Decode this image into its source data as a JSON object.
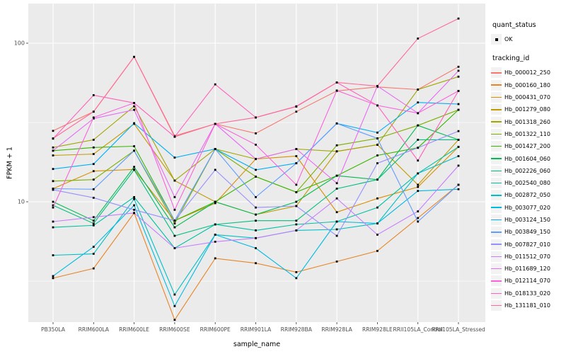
{
  "figure": {
    "y_axis": {
      "title": "FPKM + 1",
      "tick_labels": [
        "100",
        "10"
      ]
    },
    "x_axis": {
      "title": "sample_name"
    },
    "legend": {
      "quant_status": {
        "title": "quant_status",
        "items": [
          {
            "label": "OK",
            "marker": "black-point"
          }
        ]
      },
      "tracking_id": {
        "title": "tracking_id"
      }
    },
    "colors": {
      "panel_bg": "#EBEBEB",
      "grid": "#FFFFFF",
      "tick_text": "#4D4D4D",
      "point": "#000000",
      "legend_key_bg": "#F2F2F2"
    }
  },
  "chart_data": {
    "type": "line",
    "scale": "log10",
    "title": "",
    "xlabel": "sample_name",
    "ylabel": "FPKM + 1",
    "ylim": [
      1.7,
      190
    ],
    "yticks": [
      100,
      10
    ],
    "y_minor_gridlines": [
      31.6,
      3.16
    ],
    "grid": true,
    "legend_position": "right",
    "marker": "black-square-point",
    "categories": [
      "PB350LA",
      "RRIM600LA",
      "RRIM600LE",
      "RRIM600SE",
      "RRIM600PE",
      "RRIM901LA",
      "RRIM928BA",
      "RRIM928LA",
      "RRIM928LE",
      "RRII105LA_Control",
      "RRII105LA_Stressed"
    ],
    "series": [
      {
        "name": "Hb_000012_250",
        "color": "#F8766D",
        "values": [
          28,
          37,
          82,
          26,
          31,
          27,
          37,
          50,
          53,
          51,
          71
        ]
      },
      {
        "name": "Hb_000160_180",
        "color": "#E88526",
        "values": [
          3.3,
          3.8,
          8.5,
          1.8,
          4.4,
          4.1,
          3.6,
          4.2,
          4.9,
          7.9,
          12.8
        ]
      },
      {
        "name": "Hb_000431_070",
        "color": "#D89000",
        "values": [
          12.1,
          15.6,
          16,
          7.6,
          9.8,
          18.6,
          19.4,
          8.6,
          10.5,
          12.4,
          22.2
        ]
      },
      {
        "name": "Hb_001279_080",
        "color": "#C09B00",
        "values": [
          19.6,
          20,
          31,
          13.6,
          10,
          8.3,
          9.4,
          20.8,
          22.9,
          12.8,
          24.6
        ]
      },
      {
        "name": "Hb_001318_260",
        "color": "#A3A500",
        "values": [
          22,
          24.6,
          40,
          13.6,
          21.5,
          18.6,
          21.5,
          20.8,
          22.9,
          51,
          61.5
        ]
      },
      {
        "name": "Hb_001322_110",
        "color": "#7CAE00",
        "values": [
          13.5,
          13.8,
          21,
          7.3,
          21.5,
          14.4,
          11.5,
          22.7,
          25.1,
          30.3,
          38
        ]
      },
      {
        "name": "Hb_001427_200",
        "color": "#39B600",
        "values": [
          21,
          22,
          22.4,
          7.6,
          10,
          14.4,
          11.5,
          14.6,
          19.6,
          21.9,
          38
        ]
      },
      {
        "name": "Hb_001604_060",
        "color": "#00BB4E",
        "values": [
          10,
          7.6,
          16.6,
          6.9,
          10,
          8.3,
          10,
          14.6,
          13.8,
          30.3,
          24.6
        ]
      },
      {
        "name": "Hb_002226_060",
        "color": "#00BF7D",
        "values": [
          9.5,
          7.3,
          15.9,
          6.1,
          7.2,
          7.6,
          7.6,
          12.1,
          13.8,
          24.6,
          24.6
        ]
      },
      {
        "name": "Hb_002540_080",
        "color": "#00C1A3",
        "values": [
          6.9,
          7.1,
          10.7,
          5.1,
          7.2,
          6.6,
          7.2,
          7.5,
          9.2,
          15.1,
          22.2
        ]
      },
      {
        "name": "Hb_002872_050",
        "color": "#00BFC4",
        "values": [
          4.6,
          4.7,
          10.4,
          2.6,
          6.2,
          5.9,
          6.6,
          6.7,
          7.3,
          15.1,
          19.4
        ]
      },
      {
        "name": "Hb_003077_020",
        "color": "#00BAE0",
        "values": [
          3.4,
          5.2,
          9.5,
          2.2,
          6.2,
          5.1,
          3.3,
          7.5,
          7.3,
          11.7,
          12
        ]
      },
      {
        "name": "Hb_003124_150",
        "color": "#00B0F6",
        "values": [
          16.1,
          17.3,
          31.3,
          19,
          21.5,
          15.9,
          17.5,
          31.2,
          27.3,
          42.3,
          41.3
        ]
      },
      {
        "name": "Hb_003849_150",
        "color": "#619CFF",
        "values": [
          12.1,
          12,
          21,
          7.6,
          21.5,
          10.7,
          17.5,
          31.2,
          25.1,
          7.5,
          12.8
        ]
      },
      {
        "name": "Hb_007827_010",
        "color": "#9590FF",
        "values": [
          11.9,
          10.6,
          8.9,
          7.6,
          15.9,
          9.2,
          9.4,
          6.1,
          17.5,
          21.9,
          27.9
        ]
      },
      {
        "name": "Hb_011512_070",
        "color": "#C77CFF",
        "values": [
          7.5,
          8,
          8.5,
          5.1,
          5.6,
          5.9,
          6.6,
          10.5,
          6.2,
          8.7,
          16.9
        ]
      },
      {
        "name": "Hb_011689_120",
        "color": "#E76BF3",
        "values": [
          21,
          33.5,
          38,
          10.7,
          31,
          18.6,
          21.5,
          13.1,
          53.7,
          36.2,
          67
        ]
      },
      {
        "name": "Hb_012114_070",
        "color": "#FA62DB",
        "values": [
          9.2,
          34,
          42,
          8.9,
          31,
          22.9,
          12.8,
          50.3,
          40.5,
          36.2,
          50
        ]
      },
      {
        "name": "Hb_018133_020",
        "color": "#FF62BC",
        "values": [
          25,
          47,
          42,
          25.7,
          55,
          34,
          40,
          56.5,
          40.5,
          18.2,
          50
        ]
      },
      {
        "name": "Hb_131181_010",
        "color": "#FF6A98",
        "values": [
          25.1,
          37,
          82,
          25.7,
          31,
          34,
          39.8,
          56.5,
          53.7,
          107,
          143
        ]
      }
    ]
  }
}
